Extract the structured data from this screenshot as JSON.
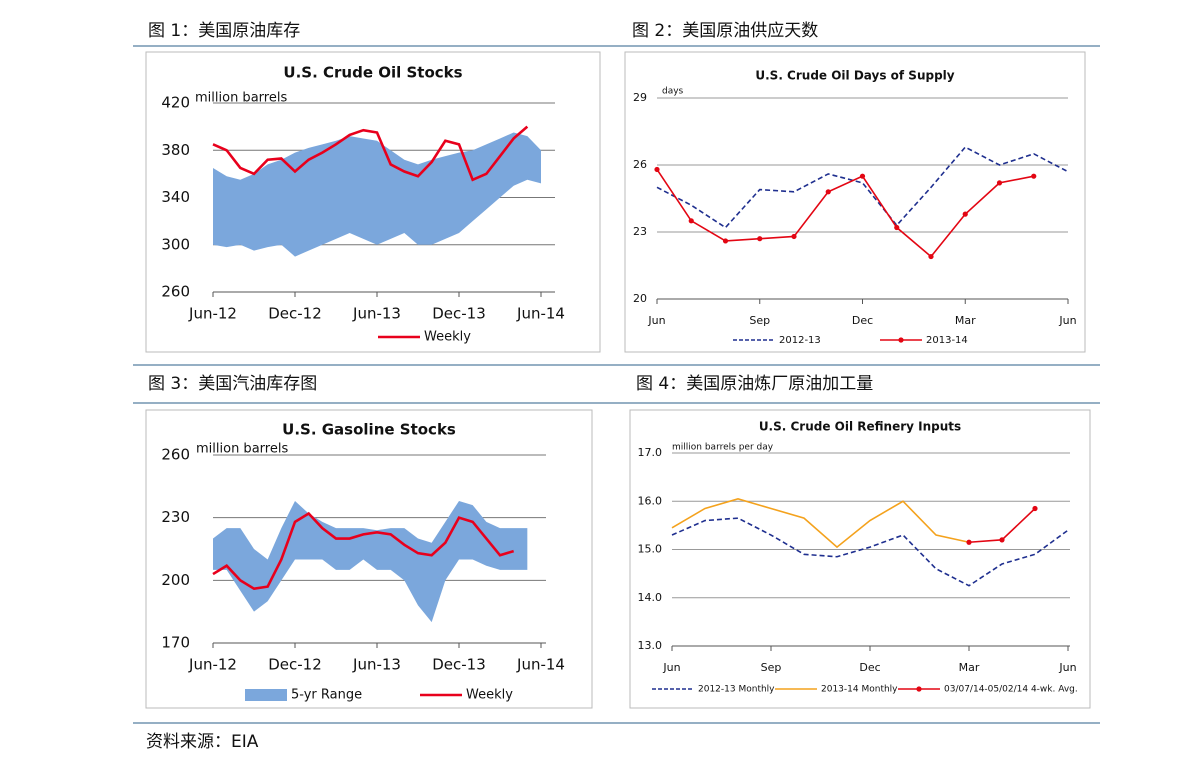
{
  "captions": [
    "图 1：美国原油库存",
    "图 2：美国原油供应天数",
    "图 3：美国汽油库存图",
    "图 4：美国原油炼厂原油加工量"
  ],
  "source": "资料来源：EIA",
  "chart_data": [
    {
      "type": "line",
      "title": "U.S. Crude Oil Stocks",
      "y_label": "million barrels",
      "categories": [
        "Jun-12",
        null,
        null,
        null,
        null,
        null,
        "Dec-12",
        null,
        null,
        null,
        null,
        null,
        "Jun-13",
        null,
        null,
        null,
        null,
        null,
        "Dec-13",
        null,
        null,
        null,
        null,
        null,
        "Jun-14"
      ],
      "ylim": [
        260,
        420
      ],
      "yticks": [
        260,
        300,
        340,
        380,
        420
      ],
      "grid": true,
      "band": {
        "color": "#7ba7dc",
        "low": [
          300,
          298,
          300,
          295,
          298,
          300,
          290,
          295,
          300,
          305,
          310,
          305,
          300,
          305,
          310,
          300,
          300,
          305,
          310,
          320,
          330,
          340,
          350,
          355,
          352
        ],
        "high": [
          365,
          358,
          355,
          360,
          368,
          372,
          378,
          382,
          385,
          388,
          392,
          390,
          388,
          380,
          372,
          368,
          372,
          375,
          378,
          380,
          385,
          390,
          395,
          392,
          380
        ]
      },
      "series": [
        {
          "name": "Weekly",
          "color": "#e8001c",
          "values": [
            385,
            380,
            365,
            360,
            372,
            373,
            362,
            372,
            378,
            385,
            393,
            397,
            395,
            368,
            362,
            358,
            370,
            388,
            385,
            355,
            360,
            375,
            390,
            400,
            null
          ]
        }
      ]
    },
    {
      "type": "line",
      "title": "U.S. Crude Oil Days  of Supply",
      "y_label": "days",
      "categories": [
        "Jun",
        null,
        null,
        "Sep",
        null,
        null,
        "Dec",
        null,
        null,
        "Mar",
        null,
        null,
        "Jun"
      ],
      "ylim": [
        20,
        29
      ],
      "yticks": [
        20,
        23,
        26,
        29
      ],
      "grid": true,
      "series": [
        {
          "name": "2012-13",
          "color": "#1f2f8f",
          "dashed": true,
          "values": [
            25.0,
            24.2,
            23.2,
            24.9,
            24.8,
            25.6,
            25.2,
            23.3,
            25.0,
            26.8,
            26.0,
            26.5,
            25.7
          ]
        },
        {
          "name": "2013-14",
          "color": "#e30613",
          "marker": true,
          "values": [
            25.8,
            23.5,
            22.6,
            22.7,
            22.8,
            24.8,
            25.5,
            23.2,
            21.9,
            23.8,
            25.2,
            25.5,
            null
          ]
        }
      ]
    },
    {
      "type": "line",
      "title": "U.S. Gasoline Stocks",
      "y_label": "million barrels",
      "categories": [
        "Jun-12",
        null,
        null,
        null,
        null,
        null,
        "Dec-12",
        null,
        null,
        null,
        null,
        null,
        "Jun-13",
        null,
        null,
        null,
        null,
        null,
        "Dec-13",
        null,
        null,
        null,
        null,
        null,
        "Jun-14"
      ],
      "ylim": [
        170,
        260
      ],
      "yticks": [
        170,
        200,
        230,
        260
      ],
      "grid": true,
      "band": {
        "name": "5-yr Range",
        "color": "#7ba7dc",
        "low": [
          205,
          205,
          195,
          185,
          190,
          200,
          210,
          210,
          210,
          205,
          205,
          210,
          205,
          205,
          200,
          188,
          180,
          200,
          210,
          210,
          207,
          205,
          205,
          205,
          null
        ],
        "high": [
          220,
          225,
          225,
          215,
          210,
          225,
          238,
          232,
          228,
          225,
          225,
          225,
          224,
          225,
          225,
          220,
          218,
          228,
          238,
          236,
          228,
          225,
          225,
          225,
          null
        ]
      },
      "series": [
        {
          "name": "Weekly",
          "color": "#e8001c",
          "values": [
            203,
            207,
            200,
            196,
            197,
            210,
            228,
            232,
            225,
            220,
            220,
            222,
            223,
            222,
            217,
            213,
            212,
            218,
            230,
            228,
            220,
            212,
            214,
            null,
            null
          ]
        }
      ]
    },
    {
      "type": "line",
      "title": "U.S. Crude Oil Refinery  Inputs",
      "y_label": "million barrels per day",
      "categories": [
        "Jun",
        null,
        null,
        "Sep",
        null,
        null,
        "Dec",
        null,
        null,
        "Mar",
        null,
        null,
        "Jun"
      ],
      "ylim": [
        13,
        17
      ],
      "yticks": [
        {
          "value": 13,
          "label": "13.0"
        },
        {
          "value": 14,
          "label": "14.0"
        },
        {
          "value": 15,
          "label": "15.0"
        },
        {
          "value": 16,
          "label": "16.0"
        },
        {
          "value": 17,
          "label": "17.0"
        }
      ],
      "grid": true,
      "series": [
        {
          "name": "2012-13 Monthly",
          "color": "#1f2f8f",
          "dashed": true,
          "values": [
            15.3,
            15.6,
            15.65,
            15.3,
            14.9,
            14.85,
            15.05,
            15.3,
            14.6,
            14.25,
            14.7,
            14.9,
            15.4
          ]
        },
        {
          "name": "2013-14 Monthly",
          "color": "#f4a21d",
          "values": [
            15.45,
            15.85,
            16.05,
            15.85,
            15.65,
            15.05,
            15.6,
            16.0,
            15.3,
            15.15,
            null,
            null,
            null
          ]
        },
        {
          "name": "03/07/14-05/02/14 4-wk. Avg.",
          "color": "#e30613",
          "marker": true,
          "values": [
            null,
            null,
            null,
            null,
            null,
            null,
            null,
            null,
            null,
            15.15,
            15.2,
            15.85,
            null
          ]
        }
      ]
    }
  ]
}
